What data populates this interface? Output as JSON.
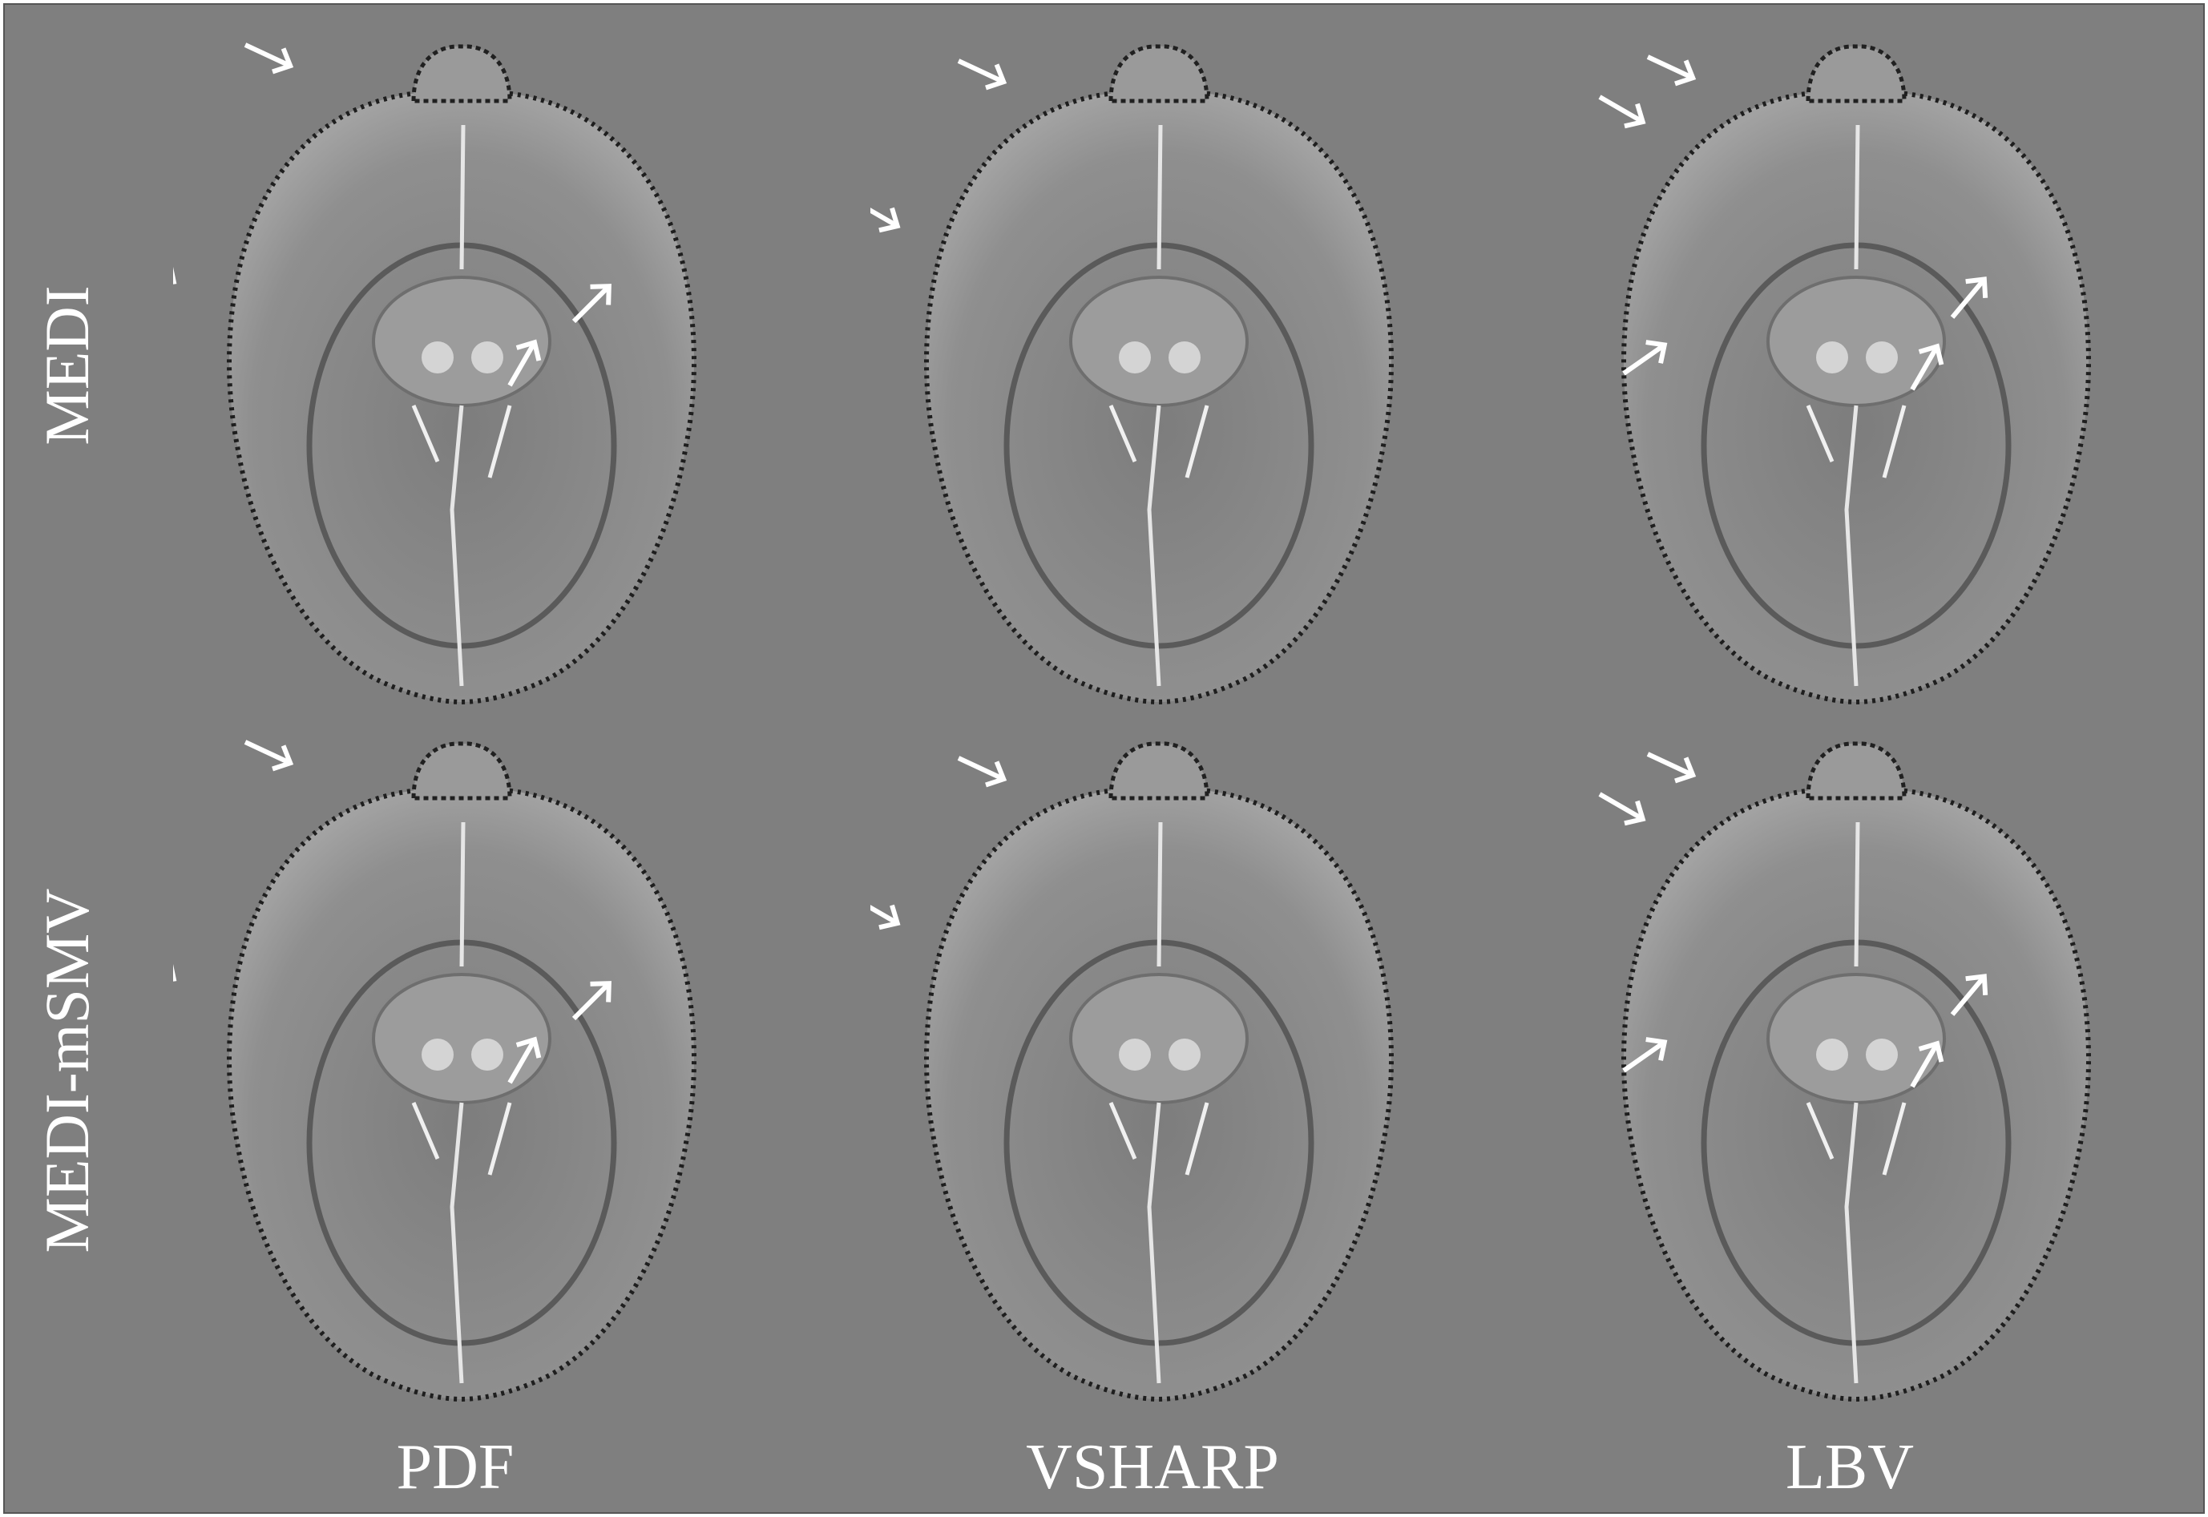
{
  "figure": {
    "background_color": "#7f7f7f",
    "arrow_color": "#ffffff",
    "rows": [
      {
        "label": "MEDI"
      },
      {
        "label": "MEDI-mSMV"
      }
    ],
    "columns": [
      {
        "label": "PDF"
      },
      {
        "label": "VSHARP"
      },
      {
        "label": "LBV"
      }
    ],
    "panel_content": "axial-brain-susceptibility-map"
  }
}
